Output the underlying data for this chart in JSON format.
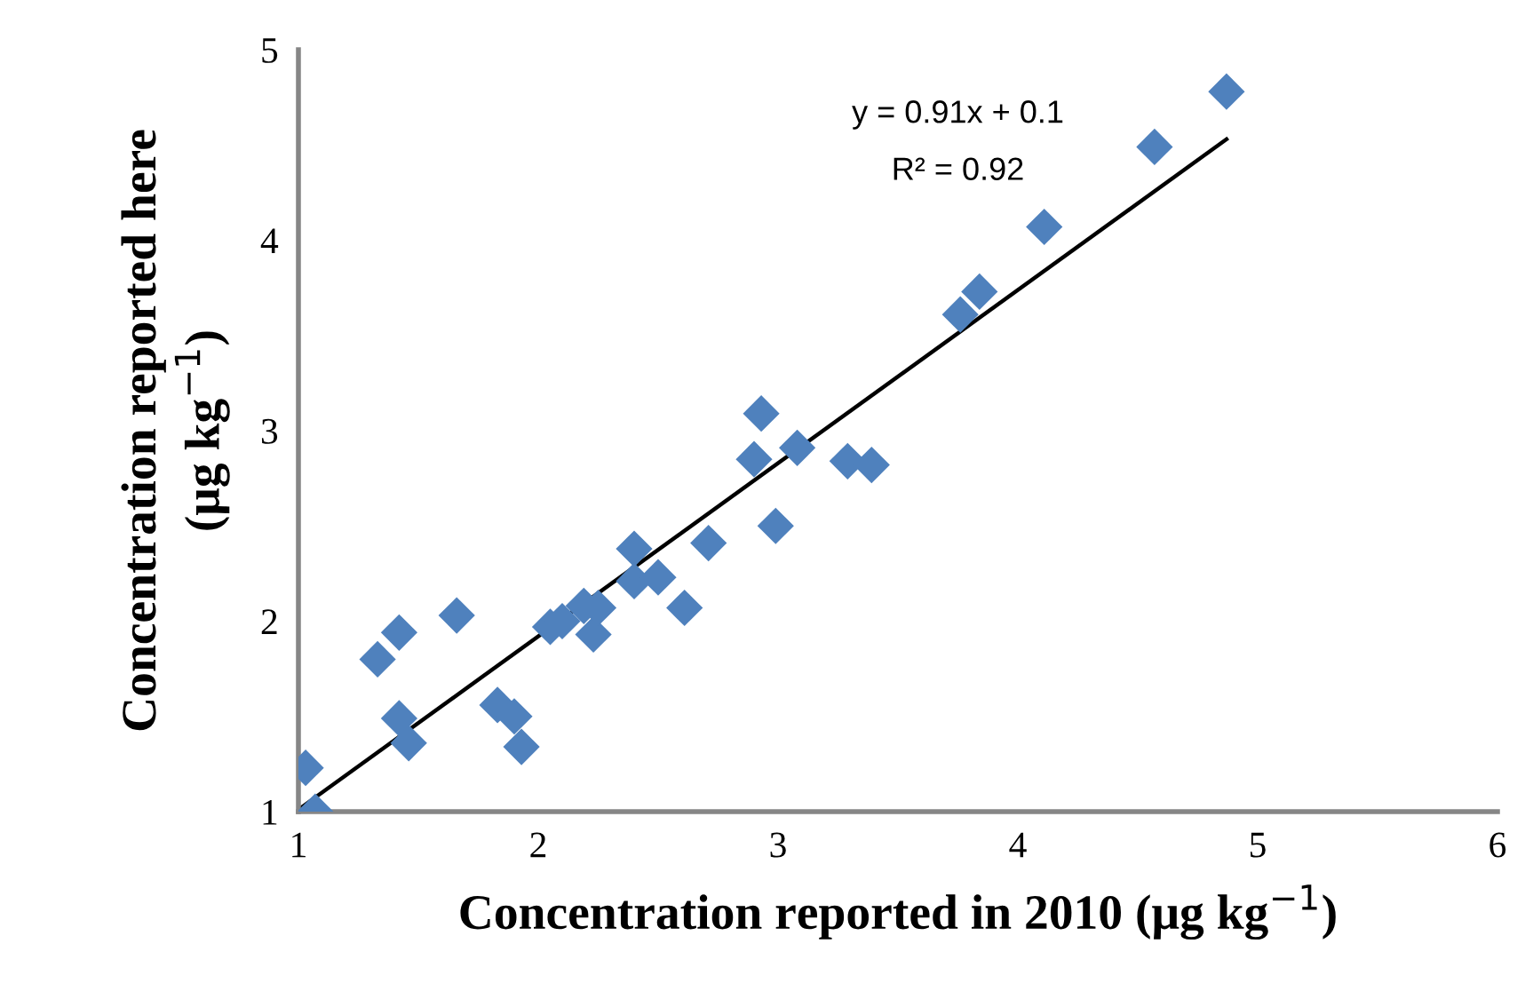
{
  "chart_data": {
    "type": "scatter",
    "xlabel": "Concentration reported in 2010 (μg kg$^{−1}$)",
    "ylabel": "Concentration reported here\n(μg kg$^{−1}$)",
    "xlim": [
      1,
      6
    ],
    "ylim": [
      1,
      5
    ],
    "xticks": [
      1,
      2,
      3,
      4,
      5,
      6
    ],
    "yticks": [
      1,
      2,
      3,
      4,
      5
    ],
    "grid": false,
    "legend": false,
    "series": [
      {
        "color": "#4f81bd",
        "marker": "diamond",
        "x": [
          1.03,
          1.07,
          1.33,
          1.42,
          1.42,
          1.46,
          1.66,
          1.83,
          1.9,
          1.93,
          2.05,
          2.1,
          2.19,
          2.23,
          2.25,
          2.4,
          2.4,
          2.5,
          2.61,
          2.71,
          2.9,
          2.93,
          2.99,
          3.08,
          3.29,
          3.39,
          3.76,
          3.84,
          4.11,
          4.57,
          4.87
        ],
        "values": [
          1.23,
          1.0,
          1.8,
          1.94,
          1.49,
          1.36,
          2.03,
          1.56,
          1.5,
          1.34,
          1.97,
          2.0,
          2.08,
          1.93,
          2.07,
          2.38,
          2.21,
          2.23,
          2.07,
          2.41,
          2.85,
          3.09,
          2.5,
          2.91,
          2.84,
          2.82,
          3.61,
          3.73,
          4.07,
          4.49,
          4.78
        ]
      },
      {
        "type": "line",
        "color": "#000000",
        "line_style": "solid",
        "marker": "none",
        "x": [
          1.01,
          4.87
        ],
        "values": [
          1.02,
          4.53
        ]
      }
    ],
    "annotations": [
      "y = 0.91x + 0.1",
      "R² = 0.92"
    ]
  }
}
